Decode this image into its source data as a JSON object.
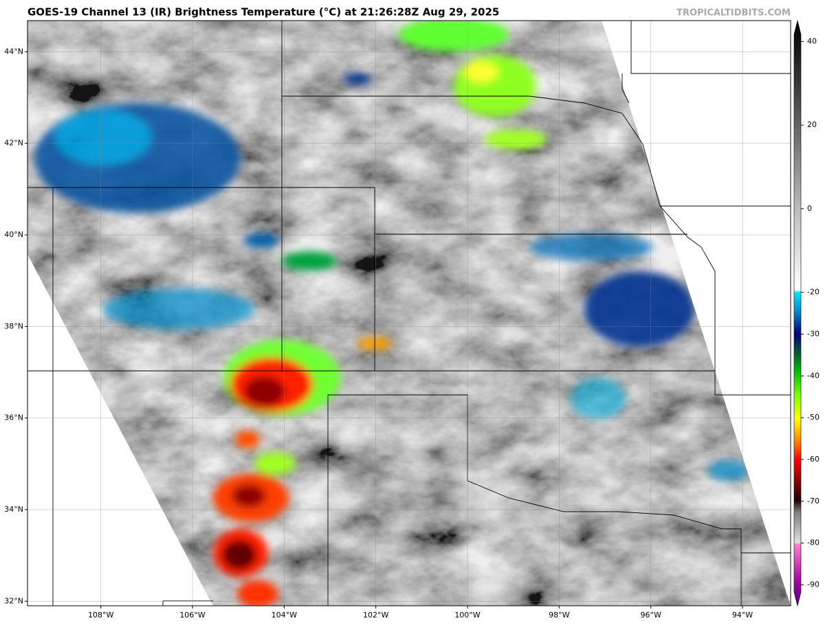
{
  "title": "GOES-19 Channel 13 (IR) Brightness Temperature (°C) at 21:26:28Z Aug 29, 2025",
  "watermark": "TROPICALTIDBITS.COM",
  "map": {
    "xlim": [
      -109.6,
      -92.95
    ],
    "ylim": [
      31.9,
      44.68
    ],
    "xticks": [
      {
        "value": -108,
        "label": "108°W"
      },
      {
        "value": -106,
        "label": "106°W"
      },
      {
        "value": -104,
        "label": "104°W"
      },
      {
        "value": -102,
        "label": "102°W"
      },
      {
        "value": -100,
        "label": "100°W"
      },
      {
        "value": -98,
        "label": "98°W"
      },
      {
        "value": -96,
        "label": "96°W"
      },
      {
        "value": -94,
        "label": "94°W"
      }
    ],
    "yticks": [
      {
        "value": 32,
        "label": "32°N"
      },
      {
        "value": 34,
        "label": "34°N"
      },
      {
        "value": 36,
        "label": "36°N"
      },
      {
        "value": 38,
        "label": "38°N"
      },
      {
        "value": 40,
        "label": "40°N"
      },
      {
        "value": 42,
        "label": "42°N"
      },
      {
        "value": 44,
        "label": "44°N"
      }
    ]
  },
  "colorbar": {
    "lim": [
      -95,
      45
    ],
    "ticks": [
      40,
      20,
      0,
      -20,
      -30,
      -40,
      -50,
      -60,
      -70,
      -80,
      -90
    ]
  }
}
